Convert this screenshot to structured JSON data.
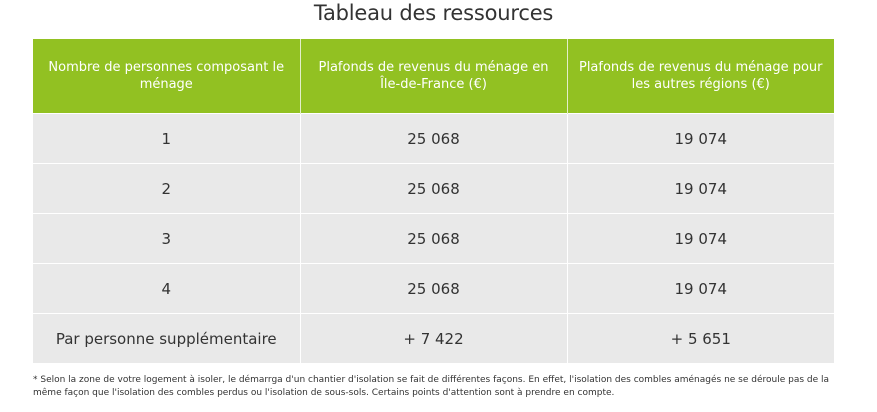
{
  "title": "Tableau des ressources",
  "table": {
    "headers": [
      "Nombre de personnes composant le ménage",
      "Plafonds de revenus du ménage en Île-de-France (€)",
      "Plafonds de revenus du ménage pour les autres régions (€)"
    ],
    "rows": [
      [
        "1",
        "25 068",
        "19 074"
      ],
      [
        "2",
        "25 068",
        "19 074"
      ],
      [
        "3",
        "25 068",
        "19 074"
      ],
      [
        "4",
        "25 068",
        "19 074"
      ],
      [
        "Par personne supplémentaire",
        "+ 7 422",
        "+ 5 651"
      ]
    ]
  },
  "footnote": "* Selon la zone de votre logement à isoler, le démarrga d'un chantier d'isolation se fait de différentes façons. En effet, l'isolation des combles aménagés ne se déroule pas de la même façon que l'isolation des combles perdus ou l'isolation de sous-sols. Certains points d'attention sont à prendre en compte.",
  "colors": {
    "header_bg": "#92c122",
    "cell_bg": "#e9e9e9",
    "text": "#333333"
  }
}
